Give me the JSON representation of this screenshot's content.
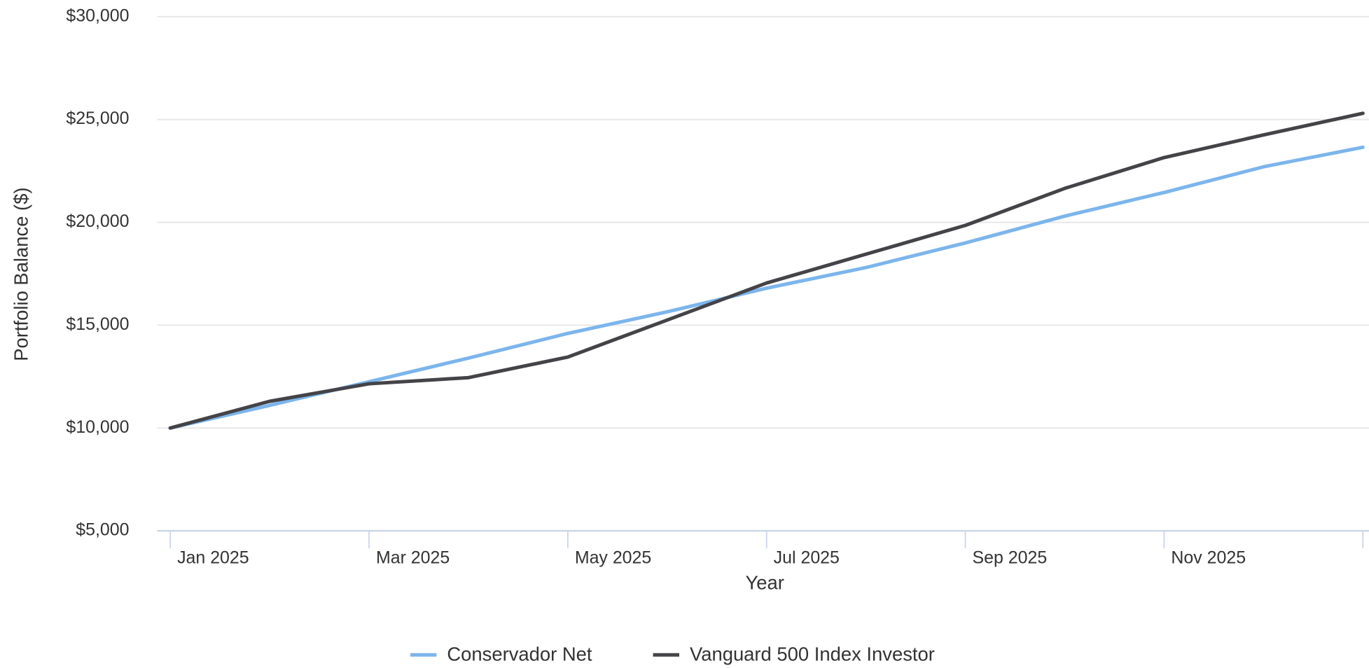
{
  "chart_data": {
    "type": "line",
    "x_label": "Year",
    "y_label": "Portfolio Balance ($)",
    "categories": [
      "Jan 2025",
      null,
      "Mar 2025",
      null,
      "May 2025",
      null,
      "Jul 2025",
      null,
      "Sep 2025",
      null,
      "Nov 2025",
      null,
      null
    ],
    "series": [
      {
        "name": "Conservador Net",
        "color": "#7cb5ec",
        "values": [
          10000,
          11100,
          12250,
          13400,
          14600,
          15650,
          16800,
          17800,
          19000,
          20300,
          21450,
          22700,
          23650
        ]
      },
      {
        "name": "Vanguard 500 Index Investor",
        "color": "#434348",
        "values": [
          10000,
          11300,
          12150,
          12450,
          13450,
          15250,
          17050,
          18450,
          19850,
          21650,
          23150,
          24250,
          25300
        ]
      }
    ],
    "ylim": [
      5000,
      30000
    ],
    "yticks": [
      {
        "value": 5000,
        "label": "$5,000"
      },
      {
        "value": 10000,
        "label": "$10,000"
      },
      {
        "value": 15000,
        "label": "$15,000"
      },
      {
        "value": 20000,
        "label": "$20,000"
      },
      {
        "value": 25000,
        "label": "$25,000"
      },
      {
        "value": 30000,
        "label": "$30,000"
      }
    ],
    "grid": true,
    "legend": "bottom"
  }
}
